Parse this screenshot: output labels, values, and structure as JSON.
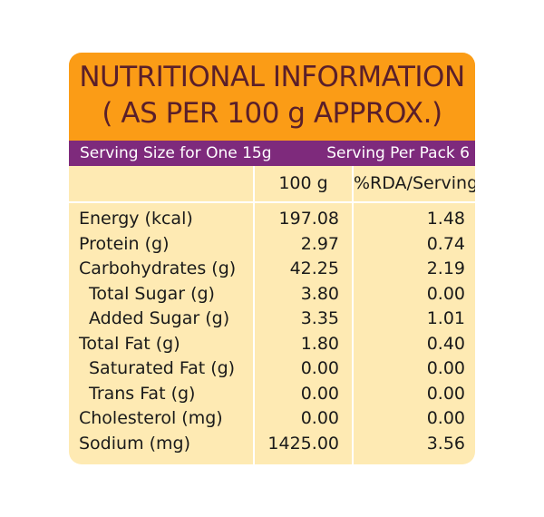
{
  "title": {
    "line1": "NUTRITIONAL INFORMATION",
    "line2": "( AS PER 100 g APPROX.)"
  },
  "serving": {
    "size": "Serving Size for One 15g",
    "per_pack": "Serving Per Pack 6"
  },
  "columns": {
    "per100": "100 g",
    "rda": "%RDA/Serving"
  },
  "rows": [
    {
      "name": "Energy (kcal)",
      "per100": "197.08",
      "rda": "1.48",
      "indent": false
    },
    {
      "name": "Protein (g)",
      "per100": "2.97",
      "rda": "0.74",
      "indent": false
    },
    {
      "name": "Carbohydrates (g)",
      "per100": "42.25",
      "rda": "2.19",
      "indent": false
    },
    {
      "name": "Total Sugar (g)",
      "per100": "3.80",
      "rda": "0.00",
      "indent": true
    },
    {
      "name": "Added Sugar (g)",
      "per100": "3.35",
      "rda": "1.01",
      "indent": true
    },
    {
      "name": "Total Fat (g)",
      "per100": "1.80",
      "rda": "0.40",
      "indent": false
    },
    {
      "name": "Saturated Fat (g)",
      "per100": "0.00",
      "rda": "0.00",
      "indent": true
    },
    {
      "name": "Trans Fat (g)",
      "per100": "0.00",
      "rda": "0.00",
      "indent": true
    },
    {
      "name": "Cholesterol (mg)",
      "per100": "0.00",
      "rda": "0.00",
      "indent": false
    },
    {
      "name": "Sodium (mg)",
      "per100": "1425.00",
      "rda": "3.56",
      "indent": false
    }
  ],
  "colors": {
    "title_bg": "#fb9c16",
    "title_text": "#5a1f2a",
    "serving_bg": "#7e2a7c",
    "table_bg": "#feeab3"
  }
}
